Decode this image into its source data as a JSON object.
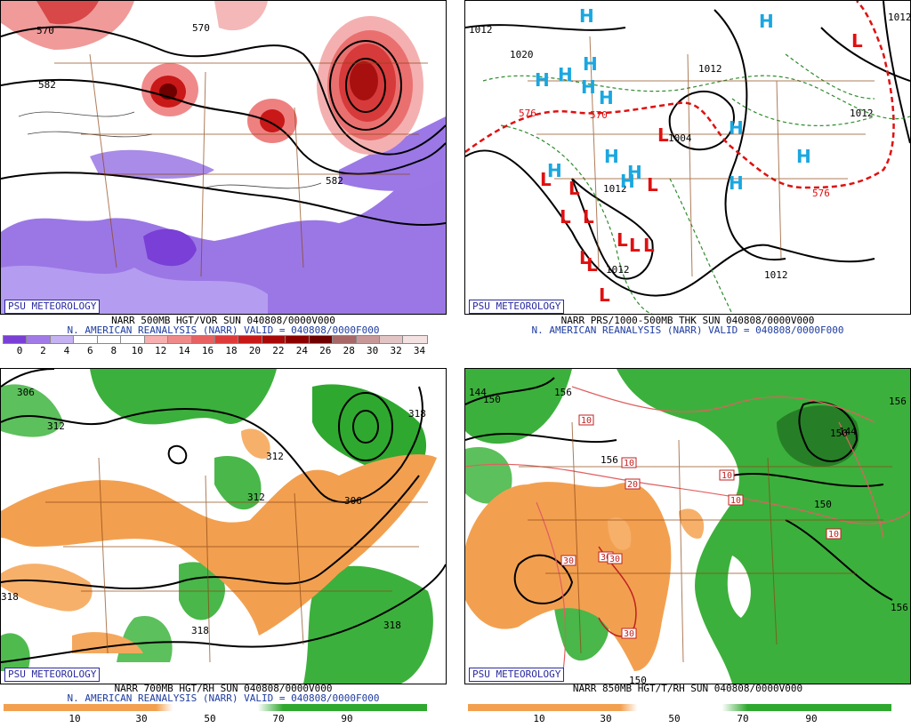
{
  "panels": [
    {
      "id": "vor500",
      "logo": "PSU METEOROLOGY",
      "line1": "NARR 500MB HGT/VOR SUN 040808/0000V000",
      "line2": "N. AMERICAN REANALYSIS (NARR) VALID = 040808/0000F000",
      "contour_labels": [
        "570",
        "582",
        "570",
        "582"
      ],
      "colorbar": {
        "ticks": [
          "0",
          "2",
          "4",
          "6",
          "8",
          "10",
          "12",
          "14",
          "16",
          "18",
          "20",
          "22",
          "24",
          "26",
          "28",
          "30",
          "32",
          "34"
        ],
        "colors": [
          "#7a3fd6",
          "#a27ae8",
          "#c4b2f2",
          "#ffffff",
          "#ffffff",
          "#ffffff",
          "#f7b0b0",
          "#f08a8a",
          "#e86060",
          "#df3a3a",
          "#c81818",
          "#a80808",
          "#8c0000",
          "#6e0000",
          "#a86868",
          "#c89898",
          "#e2c4c4",
          "#f4e2e2"
        ]
      }
    },
    {
      "id": "prs_thk",
      "logo": "PSU METEOROLOGY",
      "line1": "NARR PRS/1000-500MB THK SUN 040808/0000V000",
      "line2": "N. AMERICAN REANALYSIS (NARR) VALID = 040808/0000F000",
      "pressure_labels": [
        "1012",
        "1020",
        "1012",
        "1012",
        "1012",
        "1012",
        "1012",
        "1004",
        "1012"
      ],
      "thickness_labels": [
        "576",
        "570",
        "576"
      ],
      "highs": [
        "H",
        "H",
        "H",
        "H",
        "H",
        "H",
        "H",
        "H",
        "H",
        "H",
        "H",
        "H",
        "H",
        "H"
      ],
      "lows": [
        "L",
        "L",
        "L",
        "L",
        "L",
        "L",
        "L",
        "L",
        "L",
        "L",
        "L",
        "L",
        "L"
      ]
    },
    {
      "id": "rh700",
      "logo": "PSU METEOROLOGY",
      "line1": "NARR 700MB HGT/RH SUN 040808/0000V000",
      "line2": "N. AMERICAN REANALYSIS (NARR) VALID = 040808/0000F000",
      "contour_labels": [
        "306",
        "312",
        "312",
        "312",
        "306",
        "318",
        "318",
        "318",
        "318"
      ],
      "colorbar": {
        "ticks": [
          "10",
          "30",
          "50",
          "70",
          "90"
        ],
        "colors": [
          "#f2a050",
          "#ffffff",
          "#2fa82f"
        ]
      }
    },
    {
      "id": "rh850",
      "logo": "PSU METEOROLOGY",
      "line1": "NARR 850MB HGT/T/RH SUN 040808/0000V000",
      "contour_labels": [
        "144",
        "150",
        "156",
        "156",
        "150",
        "156",
        "150",
        "156",
        "150",
        "144"
      ],
      "temp_labels": [
        "10",
        "10",
        "20",
        "10",
        "10",
        "10",
        "30",
        "30",
        "30",
        "30"
      ],
      "colorbar": {
        "ticks": [
          "10",
          "30",
          "50",
          "70",
          "90"
        ],
        "colors": [
          "#f2a050",
          "#ffffff",
          "#2fa82f"
        ]
      }
    }
  ]
}
